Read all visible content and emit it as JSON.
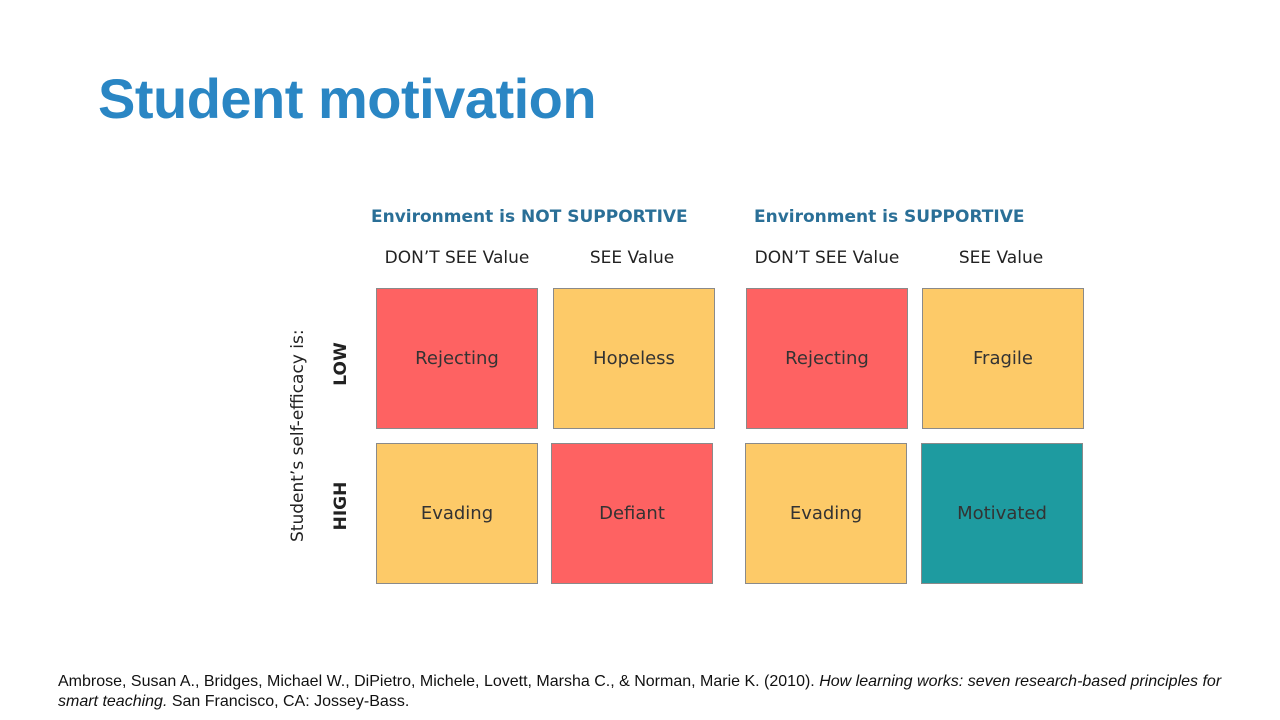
{
  "title": "Student motivation",
  "environments": [
    {
      "label": "Environment is NOT SUPPORTIVE"
    },
    {
      "label": "Environment is SUPPORTIVE"
    }
  ],
  "columns": [
    "DON’T SEE Value",
    "SEE Value",
    "DON’T SEE Value",
    "SEE Value"
  ],
  "y_axis_label": "Student’s self-efficacy is:",
  "rows": [
    "LOW",
    "HIGH"
  ],
  "cells": {
    "low": [
      "Rejecting",
      "Hopeless",
      "Rejecting",
      "Fragile"
    ],
    "high": [
      "Evading",
      "Defiant",
      "Evading",
      "Motivated"
    ]
  },
  "colors": {
    "title": "#2a86c4",
    "header": "#2a6f97",
    "red": "#fe6262",
    "yellow": "#fdca68",
    "teal": "#1e9ba0"
  },
  "citation": {
    "authors": "Ambrose, Susan A., Bridges, Michael W., DiPietro, Michele, Lovett, Marsha C., & Norman, Marie K. (2010).",
    "book_title": "How learning works: seven research-based principles for smart teaching.",
    "publisher": "San Francisco, CA: Jossey-Bass."
  }
}
